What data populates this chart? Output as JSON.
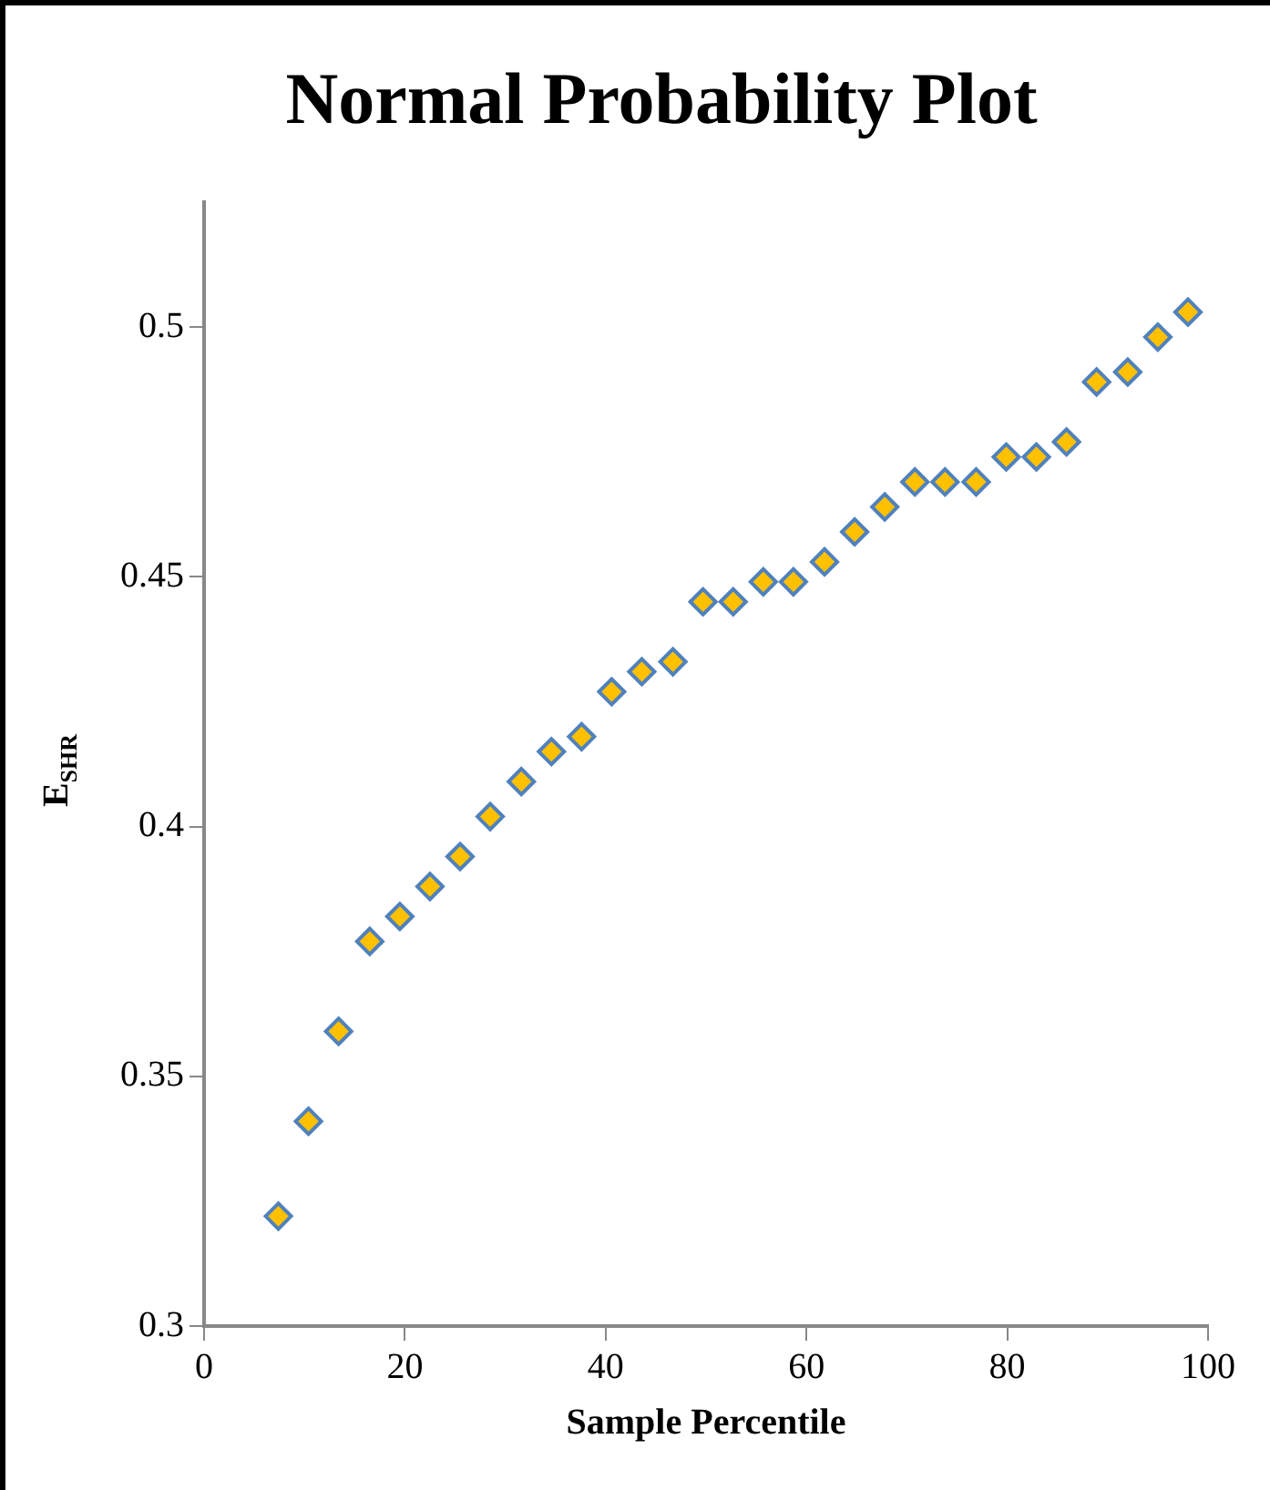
{
  "chart_data": {
    "type": "scatter",
    "title": "Normal Probability Plot",
    "xlabel": "Sample Percentile",
    "ylabel": "E$_{SHR}$",
    "x": [
      7.4,
      10.4,
      13.4,
      16.5,
      19.5,
      22.5,
      25.5,
      28.5,
      31.6,
      34.6,
      37.6,
      40.6,
      43.6,
      46.7,
      49.7,
      52.7,
      55.7,
      58.7,
      61.8,
      64.8,
      67.8,
      70.8,
      73.8,
      76.9,
      79.9,
      82.9,
      85.9,
      88.9,
      92.0,
      95.0,
      98.0
    ],
    "series": [
      {
        "color": "#ffc000",
        "values": [
          0.322,
          0.341,
          0.359,
          0.377,
          0.382,
          0.388,
          0.394,
          0.402,
          0.409,
          0.415,
          0.418,
          0.427,
          0.431,
          0.433,
          0.445,
          0.445,
          0.449,
          0.449,
          0.453,
          0.459,
          0.464,
          0.469,
          0.469,
          0.469,
          0.474,
          0.474,
          0.477,
          0.489,
          0.491,
          0.498,
          0.503
        ]
      }
    ],
    "xlim": [
      0,
      100
    ],
    "xticks": [
      0,
      20,
      40,
      60,
      80,
      100
    ],
    "ylim": [
      0.3,
      0.525
    ],
    "yticks": [
      0.3,
      0.35,
      0.4,
      0.45,
      0.5
    ],
    "grid": false,
    "legend": false,
    "marker": "diamond"
  }
}
